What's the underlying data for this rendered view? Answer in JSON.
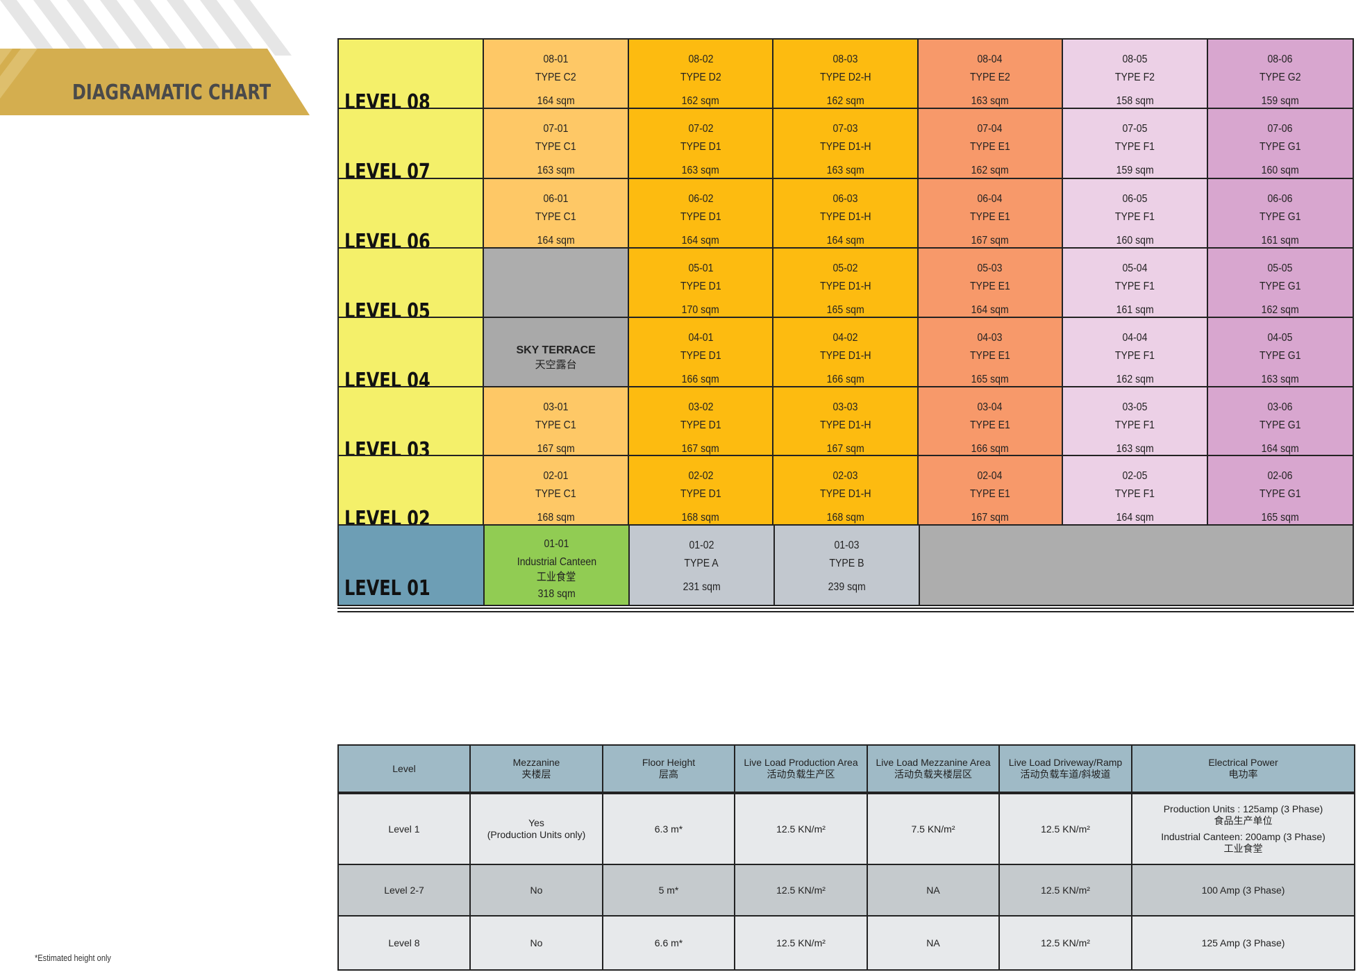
{
  "header": {
    "title": "DIAGRAMATIC CHART"
  },
  "colors": {
    "level_upper": "#f4f06a",
    "level_ground": "#6d9eb5",
    "type_c": "#fec866",
    "type_d": "#fdbb10",
    "type_d_h": "#fdbb10",
    "type_e": "#f7996a",
    "type_f": "#ecd0e6",
    "type_g": "#d8a6cf",
    "industrial_canteen": "#91cc53",
    "type_ab": "#c2c8cf",
    "sky_terrace": "#a9a9a9",
    "empty": "#adadad",
    "banner_gold": "#d4ae4f",
    "table_header": "#9fbac6"
  },
  "levels": [
    {
      "label": "LEVEL 08",
      "units": [
        {
          "id": "08-01",
          "type": "TYPE C2",
          "area": "164 sqm",
          "kind": "type_c"
        },
        {
          "id": "08-02",
          "type": "TYPE D2",
          "area": "162 sqm",
          "kind": "type_d"
        },
        {
          "id": "08-03",
          "type": "TYPE D2-H",
          "area": "162 sqm",
          "kind": "type_d_h"
        },
        {
          "id": "08-04",
          "type": "TYPE E2",
          "area": "163 sqm",
          "kind": "type_e"
        },
        {
          "id": "08-05",
          "type": "TYPE F2",
          "area": "158 sqm",
          "kind": "type_f"
        },
        {
          "id": "08-06",
          "type": "TYPE G2",
          "area": "159 sqm",
          "kind": "type_g"
        }
      ]
    },
    {
      "label": "LEVEL 07",
      "units": [
        {
          "id": "07-01",
          "type": "TYPE C1",
          "area": "163 sqm",
          "kind": "type_c"
        },
        {
          "id": "07-02",
          "type": "TYPE D1",
          "area": "163 sqm",
          "kind": "type_d"
        },
        {
          "id": "07-03",
          "type": "TYPE D1-H",
          "area": "163 sqm",
          "kind": "type_d_h"
        },
        {
          "id": "07-04",
          "type": "TYPE E1",
          "area": "162 sqm",
          "kind": "type_e"
        },
        {
          "id": "07-05",
          "type": "TYPE F1",
          "area": "159 sqm",
          "kind": "type_f"
        },
        {
          "id": "07-06",
          "type": "TYPE G1",
          "area": "160 sqm",
          "kind": "type_g"
        }
      ]
    },
    {
      "label": "LEVEL 06",
      "units": [
        {
          "id": "06-01",
          "type": "TYPE C1",
          "area": "164 sqm",
          "kind": "type_c"
        },
        {
          "id": "06-02",
          "type": "TYPE D1",
          "area": "164 sqm",
          "kind": "type_d"
        },
        {
          "id": "06-03",
          "type": "TYPE D1-H",
          "area": "164 sqm",
          "kind": "type_d_h"
        },
        {
          "id": "06-04",
          "type": "TYPE E1",
          "area": "167 sqm",
          "kind": "type_e"
        },
        {
          "id": "06-05",
          "type": "TYPE F1",
          "area": "160 sqm",
          "kind": "type_f"
        },
        {
          "id": "06-06",
          "type": "TYPE G1",
          "area": "161 sqm",
          "kind": "type_g"
        }
      ]
    },
    {
      "label": "LEVEL 05",
      "units": [
        {
          "kind": "empty"
        },
        {
          "id": "05-01",
          "type": "TYPE D1",
          "area": "170 sqm",
          "kind": "type_d"
        },
        {
          "id": "05-02",
          "type": "TYPE D1-H",
          "area": "165 sqm",
          "kind": "type_d_h"
        },
        {
          "id": "05-03",
          "type": "TYPE E1",
          "area": "164 sqm",
          "kind": "type_e"
        },
        {
          "id": "05-04",
          "type": "TYPE F1",
          "area": "161 sqm",
          "kind": "type_f"
        },
        {
          "id": "05-05",
          "type": "TYPE G1",
          "area": "162 sqm",
          "kind": "type_g"
        }
      ]
    },
    {
      "label": "LEVEL 04",
      "units": [
        {
          "kind": "sky_terrace",
          "name_en": "SKY TERRACE",
          "name_zh": "天空露台"
        },
        {
          "id": "04-01",
          "type": "TYPE D1",
          "area": "166 sqm",
          "kind": "type_d"
        },
        {
          "id": "04-02",
          "type": "TYPE D1-H",
          "area": "166 sqm",
          "kind": "type_d_h"
        },
        {
          "id": "04-03",
          "type": "TYPE E1",
          "area": "165 sqm",
          "kind": "type_e"
        },
        {
          "id": "04-04",
          "type": "TYPE F1",
          "area": "162 sqm",
          "kind": "type_f"
        },
        {
          "id": "04-05",
          "type": "TYPE G1",
          "area": "163 sqm",
          "kind": "type_g"
        }
      ]
    },
    {
      "label": "LEVEL 03",
      "units": [
        {
          "id": "03-01",
          "type": "TYPE C1",
          "area": "167 sqm",
          "kind": "type_c"
        },
        {
          "id": "03-02",
          "type": "TYPE D1",
          "area": "167 sqm",
          "kind": "type_d"
        },
        {
          "id": "03-03",
          "type": "TYPE D1-H",
          "area": "167 sqm",
          "kind": "type_d_h"
        },
        {
          "id": "03-04",
          "type": "TYPE E1",
          "area": "166 sqm",
          "kind": "type_e"
        },
        {
          "id": "03-05",
          "type": "TYPE F1",
          "area": "163 sqm",
          "kind": "type_f"
        },
        {
          "id": "03-06",
          "type": "TYPE G1",
          "area": "164 sqm",
          "kind": "type_g"
        }
      ]
    },
    {
      "label": "LEVEL 02",
      "units": [
        {
          "id": "02-01",
          "type": "TYPE C1",
          "area": "168 sqm",
          "kind": "type_c"
        },
        {
          "id": "02-02",
          "type": "TYPE D1",
          "area": "168 sqm",
          "kind": "type_d"
        },
        {
          "id": "02-03",
          "type": "TYPE D1-H",
          "area": "168 sqm",
          "kind": "type_d_h"
        },
        {
          "id": "02-04",
          "type": "TYPE E1",
          "area": "167 sqm",
          "kind": "type_e"
        },
        {
          "id": "02-05",
          "type": "TYPE F1",
          "area": "164 sqm",
          "kind": "type_f"
        },
        {
          "id": "02-06",
          "type": "TYPE G1",
          "area": "165 sqm",
          "kind": "type_g"
        }
      ]
    },
    {
      "label": "LEVEL 01",
      "units": [
        {
          "id": "01-01",
          "type": "Industrial Canteen",
          "type_zh": "工业食堂",
          "area": "318 sqm",
          "kind": "industrial_canteen"
        },
        {
          "id": "01-02",
          "type": "TYPE A",
          "area": "231 sqm",
          "kind": "type_ab"
        },
        {
          "id": "01-03",
          "type": "TYPE B",
          "area": "239 sqm",
          "kind": "type_ab"
        },
        {
          "kind": "empty",
          "span": 3
        }
      ]
    }
  ],
  "spec_table": {
    "headers": [
      {
        "en": "Level",
        "zh": ""
      },
      {
        "en": "Mezzanine",
        "zh": "夹楼层"
      },
      {
        "en": "Floor Height",
        "zh": "层高"
      },
      {
        "en": "Live Load Production Area",
        "zh": "活动负载生产区"
      },
      {
        "en": "Live Load Mezzanine Area",
        "zh": "活动负载夹楼层区"
      },
      {
        "en": "Live Load Driveway/Ramp",
        "zh": "活动负载车道/斜坡道"
      },
      {
        "en": "Electrical Power",
        "zh": "电功率"
      }
    ],
    "rows": [
      {
        "cells": [
          [
            "Level 1"
          ],
          [
            "Yes",
            "(Production Units only)"
          ],
          [
            "6.3 m*"
          ],
          [
            "12.5 KN/m²"
          ],
          [
            "7.5 KN/m²"
          ],
          [
            "12.5 KN/m²"
          ],
          [
            "Production Units : 125amp (3 Phase)",
            "食品生产单位",
            "Industrial Canteen: 200amp (3 Phase)",
            "工业食堂"
          ]
        ]
      },
      {
        "cells": [
          [
            "Level 2-7"
          ],
          [
            "No"
          ],
          [
            "5 m*"
          ],
          [
            "12.5 KN/m²"
          ],
          [
            "NA"
          ],
          [
            "12.5 KN/m²"
          ],
          [
            "100 Amp (3 Phase)"
          ]
        ]
      },
      {
        "cells": [
          [
            "Level 8"
          ],
          [
            "No"
          ],
          [
            "6.6 m*"
          ],
          [
            "12.5 KN/m²"
          ],
          [
            "NA"
          ],
          [
            "12.5 KN/m²"
          ],
          [
            "125 Amp (3 Phase)"
          ]
        ]
      }
    ]
  },
  "footnote": "*Estimated height only"
}
